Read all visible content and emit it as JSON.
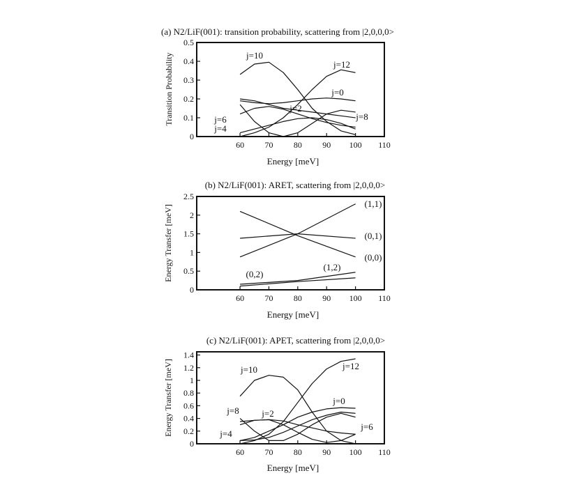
{
  "chart_data": [
    {
      "type": "line",
      "title": "(a) N2/LiF(001): transition probability, scattering from |2,0,0,0>",
      "xlabel": "Energy [meV]",
      "ylabel": "Transition Probability",
      "xlim": [
        45,
        110
      ],
      "ylim": [
        0,
        0.5
      ],
      "xticks": [
        "60",
        "70",
        "80",
        "90",
        "100",
        "110"
      ],
      "yticks": [
        "0",
        "0.1",
        "0.2",
        "0.3",
        "0.4",
        "0.5"
      ],
      "grid": false,
      "series": [
        {
          "name": "j=10",
          "x": [
            60,
            65,
            70,
            75,
            80,
            85,
            90,
            95,
            100
          ],
          "y": [
            0.33,
            0.385,
            0.395,
            0.34,
            0.25,
            0.15,
            0.08,
            0.03,
            0.01
          ]
        },
        {
          "name": "j=12",
          "x": [
            60,
            65,
            70,
            75,
            80,
            85,
            90,
            95,
            100
          ],
          "y": [
            0.0,
            0.02,
            0.05,
            0.1,
            0.17,
            0.25,
            0.32,
            0.355,
            0.34
          ]
        },
        {
          "name": "j=0",
          "x": [
            60,
            65,
            70,
            75,
            80,
            85,
            90,
            95,
            100
          ],
          "y": [
            0.19,
            0.18,
            0.175,
            0.18,
            0.19,
            0.2,
            0.205,
            0.2,
            0.19
          ]
        },
        {
          "name": "j=2",
          "x": [
            60,
            65,
            70,
            75,
            80,
            85,
            90,
            95,
            100
          ],
          "y": [
            0.2,
            0.19,
            0.17,
            0.15,
            0.14,
            0.13,
            0.12,
            0.11,
            0.1
          ]
        },
        {
          "name": "j=6",
          "x": [
            60,
            65,
            70,
            75,
            80,
            85,
            90,
            95,
            100
          ],
          "y": [
            0.12,
            0.15,
            0.16,
            0.145,
            0.12,
            0.095,
            0.075,
            0.06,
            0.05
          ]
        },
        {
          "name": "j=4",
          "x": [
            60,
            65,
            70,
            75,
            80,
            85,
            90,
            95,
            100
          ],
          "y": [
            0.02,
            0.04,
            0.06,
            0.08,
            0.095,
            0.1,
            0.09,
            0.07,
            0.04
          ]
        },
        {
          "name": "j=8",
          "x": [
            60,
            65,
            70,
            75,
            80,
            85,
            90,
            95,
            100
          ],
          "y": [
            0.17,
            0.08,
            0.02,
            0.0,
            0.02,
            0.07,
            0.12,
            0.14,
            0.13
          ]
        }
      ]
    },
    {
      "type": "line",
      "title": "(b) N2/LiF(001): ARET, scattering from |2,0,0,0>",
      "xlabel": "Energy [meV]",
      "ylabel": "Energy Transfer [meV]",
      "xlim": [
        45,
        110
      ],
      "ylim": [
        0,
        2.5
      ],
      "xticks": [
        "60",
        "70",
        "80",
        "90",
        "100",
        "110"
      ],
      "yticks": [
        "0",
        "0.5",
        "1",
        "1.5",
        "2",
        "2.5"
      ],
      "grid": false,
      "series": [
        {
          "name": "(1,1)",
          "x": [
            60,
            80,
            100
          ],
          "y": [
            0.88,
            1.5,
            2.3
          ]
        },
        {
          "name": "(0,1)",
          "x": [
            60,
            80,
            100
          ],
          "y": [
            1.38,
            1.5,
            1.38
          ]
        },
        {
          "name": "(0,0)",
          "x": [
            60,
            80,
            100
          ],
          "y": [
            2.1,
            1.45,
            0.88
          ]
        },
        {
          "name": "(0,2)",
          "x": [
            60,
            80,
            100
          ],
          "y": [
            0.1,
            0.22,
            0.32
          ]
        },
        {
          "name": "(1,2)",
          "x": [
            60,
            80,
            100
          ],
          "y": [
            0.15,
            0.25,
            0.47
          ]
        }
      ]
    },
    {
      "type": "line",
      "title": "(c) N2/LiF(001): APET, scattering from |2,0,0,0>",
      "xlabel": "Energy [meV]",
      "ylabel": "Energy Transfer [meV]",
      "xlim": [
        45,
        110
      ],
      "ylim": [
        0,
        1.45
      ],
      "xticks": [
        "60",
        "70",
        "80",
        "90",
        "100",
        "110"
      ],
      "yticks": [
        "0",
        "0.2",
        "0.4",
        "0.6",
        "0.8",
        "1",
        "1.2",
        "1.4"
      ],
      "grid": false,
      "series": [
        {
          "name": "j=10",
          "x": [
            60,
            65,
            70,
            75,
            80,
            85,
            90,
            95,
            100
          ],
          "y": [
            0.75,
            1.0,
            1.08,
            1.05,
            0.85,
            0.5,
            0.2,
            0.05,
            0.0
          ]
        },
        {
          "name": "j=12",
          "x": [
            60,
            65,
            70,
            75,
            80,
            85,
            90,
            95,
            100
          ],
          "y": [
            0.0,
            0.05,
            0.15,
            0.35,
            0.65,
            0.95,
            1.18,
            1.3,
            1.34
          ]
        },
        {
          "name": "j=0",
          "x": [
            60,
            65,
            70,
            75,
            80,
            85,
            90,
            95,
            100
          ],
          "y": [
            0.05,
            0.1,
            0.2,
            0.3,
            0.42,
            0.5,
            0.55,
            0.57,
            0.56
          ]
        },
        {
          "name": "j=2",
          "x": [
            60,
            65,
            70,
            75,
            80,
            85,
            90,
            95,
            100
          ],
          "y": [
            0.35,
            0.37,
            0.38,
            0.36,
            0.3,
            0.25,
            0.2,
            0.17,
            0.15
          ]
        },
        {
          "name": "j=8",
          "x": [
            60,
            65,
            70,
            75,
            80,
            85,
            90,
            95,
            100
          ],
          "y": [
            0.4,
            0.2,
            0.05,
            0.05,
            0.15,
            0.3,
            0.42,
            0.48,
            0.42
          ]
        },
        {
          "name": "j=4",
          "x": [
            60,
            65,
            70,
            75,
            80,
            85,
            90,
            95,
            100
          ],
          "y": [
            0.05,
            0.06,
            0.1,
            0.18,
            0.28,
            0.38,
            0.45,
            0.5,
            0.48
          ]
        },
        {
          "name": "j=6",
          "x": [
            60,
            65,
            70,
            75,
            80,
            85,
            90,
            95,
            100
          ],
          "y": [
            0.3,
            0.37,
            0.38,
            0.3,
            0.18,
            0.07,
            0.02,
            0.05,
            0.15
          ]
        }
      ]
    }
  ]
}
